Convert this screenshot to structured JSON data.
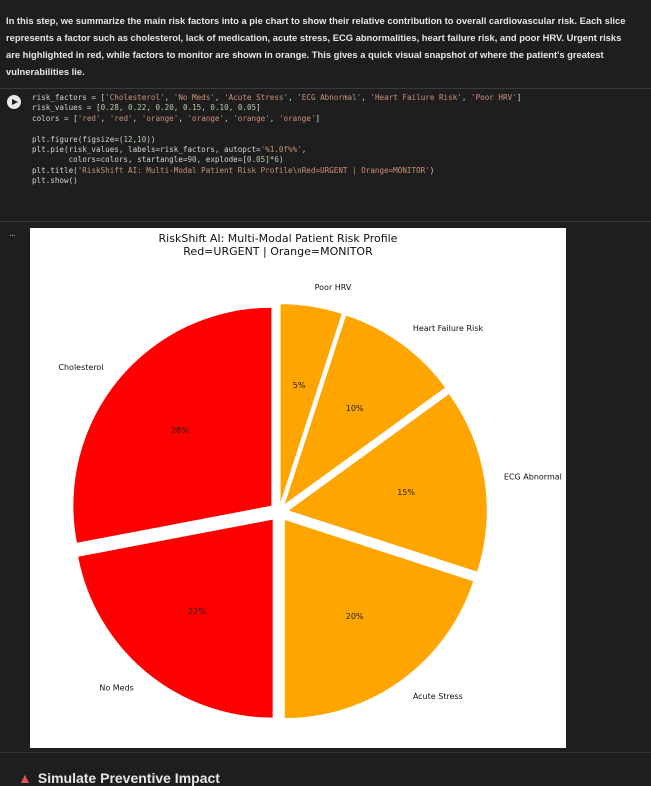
{
  "text_cell": "In this step, we summarize the main risk factors into a pie chart to show their relative contribution to overall cardiovascular risk. Each slice represents a factor such as cholesterol, lack of medication, acute stress, ECG abnormalities, heart failure risk, and poor HRV. Urgent risks are highlighted in red, while factors to monitor are shown in orange. This gives a quick visual snapshot of where the patient's greatest vulnerabilities lie.",
  "code_cell": {
    "lines": [
      "risk_factors = ['Cholesterol', 'No Meds', 'Acute Stress', 'ECG Abnormal', 'Heart Failure Risk', 'Poor HRV']",
      "risk_values = [0.28, 0.22, 0.20, 0.15, 0.10, 0.05]",
      "colors = ['red', 'red', 'orange', 'orange', 'orange', 'orange']",
      "",
      "plt.figure(figsize=(12,10))",
      "plt.pie(risk_values, labels=risk_factors, autopct='%1.0f%%',",
      "        colors=colors, startangle=90, explode=[0.05]*6)",
      "plt.title('RiskShift AI: Multi-Modal Patient Risk Profile\\nRed=URGENT | Orange=MONITOR')",
      "plt.show()"
    ]
  },
  "output_marker": "...",
  "chart_data": {
    "type": "pie",
    "title": "RiskShift AI: Multi-Modal Patient Risk Profile",
    "subtitle": "Red=URGENT | Orange=MONITOR",
    "start_angle": 90,
    "direction": "counterclockwise",
    "explode": 0.05,
    "slices": [
      {
        "label": "Cholesterol",
        "value": 0.28,
        "pct_label": "28%",
        "color": "#ff0000"
      },
      {
        "label": "No Meds",
        "value": 0.22,
        "pct_label": "22%",
        "color": "#ff0000"
      },
      {
        "label": "Acute Stress",
        "value": 0.2,
        "pct_label": "20%",
        "color": "#ffa500"
      },
      {
        "label": "ECG Abnormal",
        "value": 0.15,
        "pct_label": "15%",
        "color": "#ffa500"
      },
      {
        "label": "Heart Failure Risk",
        "value": 0.1,
        "pct_label": "10%",
        "color": "#ffa500"
      },
      {
        "label": "Poor HRV",
        "value": 0.05,
        "pct_label": "5%",
        "color": "#ffa500"
      }
    ]
  },
  "bottom_heading": "Simulate Preventive Impact"
}
